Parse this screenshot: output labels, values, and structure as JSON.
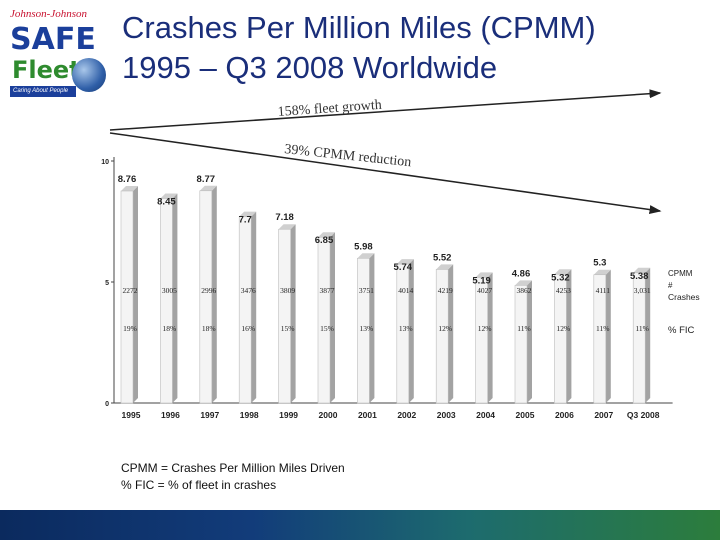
{
  "logo": {
    "brand": "Johnson-Johnson",
    "line1": "SAFE",
    "line2": "Fleet",
    "tagline": "Caring About People"
  },
  "title": "Crashes Per Million Miles (CPMM)\n1995 – Q3 2008 Worldwide",
  "footnotes": [
    "CPMM = Crashes Per Million Miles Driven",
    "% FIC = % of fleet in crashes"
  ],
  "annotations": {
    "growth": "158% fleet growth",
    "reduction": "39% CPMM reduction"
  },
  "colors": {
    "bar_front": "#f4f4f4",
    "bar_side": "#a3a3a3",
    "title": "#1a2e7a",
    "bottom_bar_start": "#0b2a5e",
    "bottom_bar_end": "#2c7d3c"
  },
  "chart_data": {
    "type": "bar",
    "categories": [
      "1995",
      "1996",
      "1997",
      "1998",
      "1999",
      "2000",
      "2001",
      "2002",
      "2003",
      "2004",
      "2005",
      "2006",
      "2007",
      "Q3 2008"
    ],
    "ylim": [
      0,
      10
    ],
    "yticks": [
      "0",
      "5",
      "10"
    ],
    "series": [
      {
        "name": "CPMM",
        "values": [
          8.76,
          8.45,
          8.77,
          7.7,
          7.18,
          6.85,
          5.98,
          5.74,
          5.52,
          5.19,
          4.86,
          5.32,
          5.3,
          5.38
        ],
        "labels": [
          "8.76",
          "8.45",
          "8.77",
          "7.7",
          "7.18",
          "6.85",
          "5.98",
          "5.74",
          "5.52",
          "5.19",
          "4.86",
          "5.32",
          "5.3",
          "5.38"
        ]
      }
    ],
    "table_rows": [
      {
        "name": "# Crashes",
        "values": [
          "2272",
          "3005",
          "2996",
          "3476",
          "3809",
          "3877",
          "3751",
          "4014",
          "4219",
          "4027",
          "3862",
          "4253",
          "4111",
          "3,031"
        ]
      },
      {
        "name": "% FIC",
        "values": [
          "19%",
          "18%",
          "18%",
          "16%",
          "15%",
          "15%",
          "13%",
          "13%",
          "12%",
          "12%",
          "11%",
          "12%",
          "11%",
          "11%"
        ]
      }
    ]
  }
}
